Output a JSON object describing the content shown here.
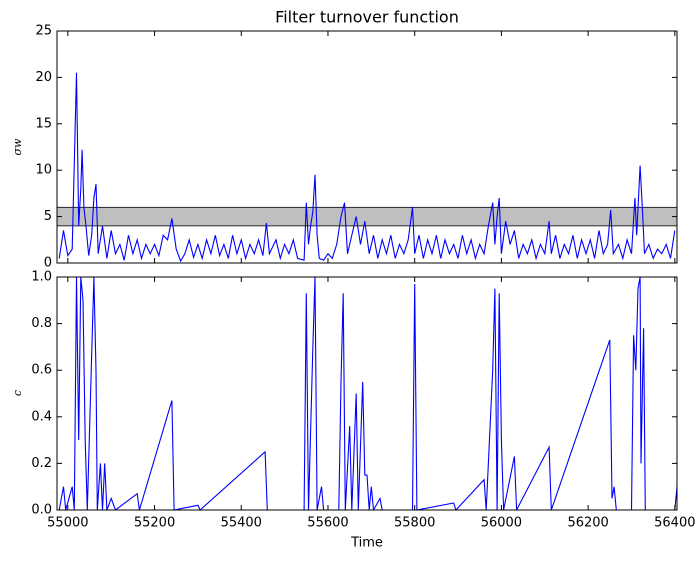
{
  "chart_data": [
    {
      "type": "line",
      "title": "Filter turnover function",
      "ylabel": "σw",
      "color": "#0000ff",
      "ylim": [
        0,
        25
      ],
      "yticks": [
        0,
        5,
        10,
        15,
        20,
        25
      ],
      "band": [
        4,
        6
      ],
      "band_color": "#bfbfbf",
      "x": [
        54980,
        54990,
        55000,
        55010,
        55020,
        55025,
        55030,
        55033,
        55037,
        55042,
        55048,
        55055,
        55060,
        55065,
        55070,
        55080,
        55090,
        55100,
        55110,
        55120,
        55130,
        55140,
        55150,
        55160,
        55170,
        55180,
        55190,
        55200,
        55210,
        55220,
        55230,
        55240,
        55250,
        55260,
        55270,
        55280,
        55290,
        55300,
        55310,
        55320,
        55330,
        55340,
        55350,
        55360,
        55370,
        55380,
        55390,
        55400,
        55410,
        55420,
        55430,
        55440,
        55450,
        55458,
        55465,
        55480,
        55490,
        55500,
        55510,
        55520,
        55530,
        55545,
        55550,
        55555,
        55560,
        55565,
        55570,
        55575,
        55580,
        55590,
        55600,
        55610,
        55620,
        55630,
        55638,
        55645,
        55655,
        55665,
        55675,
        55685,
        55695,
        55705,
        55715,
        55725,
        55735,
        55745,
        55755,
        55765,
        55775,
        55785,
        55795,
        55800,
        55810,
        55820,
        55830,
        55840,
        55850,
        55860,
        55870,
        55880,
        55890,
        55900,
        55910,
        55920,
        55930,
        55940,
        55950,
        55960,
        55970,
        55980,
        55985,
        55990,
        55995,
        56000,
        56010,
        56020,
        56030,
        56040,
        56050,
        56060,
        56070,
        56080,
        56090,
        56100,
        56110,
        56115,
        56125,
        56135,
        56145,
        56155,
        56165,
        56175,
        56185,
        56195,
        56205,
        56215,
        56225,
        56235,
        56245,
        56252,
        56258,
        56270,
        56280,
        56290,
        56300,
        56308,
        56312,
        56320,
        56325,
        56330,
        56340,
        56350,
        56360,
        56370,
        56380,
        56390,
        56400
      ],
      "values": [
        0.5,
        3.5,
        0.8,
        1.5,
        20.5,
        4,
        8,
        12.2,
        6,
        4,
        0.8,
        3,
        7,
        8.5,
        1,
        4,
        0.5,
        3.5,
        1,
        2,
        0.3,
        3,
        1,
        2.5,
        0.5,
        2,
        1,
        2,
        0.8,
        3,
        2.5,
        4.8,
        1.5,
        0.2,
        1,
        2.5,
        0.6,
        2,
        0.5,
        2.5,
        1,
        3,
        0.8,
        2,
        0.5,
        3,
        1,
        2.5,
        0.5,
        2,
        1,
        2.5,
        0.8,
        4.3,
        1,
        2.5,
        0.5,
        2,
        1,
        2.5,
        0.5,
        0.3,
        6.5,
        2,
        4,
        5.5,
        9.5,
        3,
        0.5,
        0.3,
        1,
        0.5,
        2,
        5,
        6.5,
        1,
        3,
        5,
        2,
        4.5,
        1,
        3,
        0.5,
        2.5,
        1,
        3,
        0.5,
        2,
        1,
        2.5,
        6,
        1,
        3,
        0.5,
        2.5,
        1,
        3,
        0.5,
        2.5,
        1,
        2,
        0.5,
        3,
        1,
        2.5,
        0.5,
        2,
        1,
        4,
        6.5,
        2,
        5,
        7,
        1,
        4.5,
        2,
        3.5,
        0.5,
        2,
        1,
        2.5,
        0.5,
        2,
        1,
        4.5,
        1,
        3,
        0.5,
        2,
        1,
        3,
        0.5,
        2.5,
        1,
        2.5,
        0.5,
        3.5,
        1,
        2,
        5.7,
        1,
        2,
        0.5,
        2.5,
        1,
        7,
        3,
        10.5,
        6,
        1,
        2,
        0.5,
        1.5,
        1,
        2,
        0.5,
        3.5
      ]
    },
    {
      "type": "line",
      "ylabel": "c",
      "xlabel": "Time",
      "color": "#0000ff",
      "xlim": [
        54975,
        56405
      ],
      "xticks": [
        55000,
        55200,
        55400,
        55600,
        55800,
        56000,
        56200,
        56400
      ],
      "ylim": [
        0,
        1
      ],
      "yticks": [
        {
          "value": 0,
          "label": "0.0"
        },
        0.2,
        0.4,
        0.6,
        0.8,
        {
          "value": 1,
          "label": "1.0"
        }
      ],
      "x": [
        54980,
        54990,
        54995,
        55010,
        55015,
        55020,
        55025,
        55030,
        55035,
        55040,
        55045,
        55055,
        55060,
        55065,
        55068,
        55075,
        55080,
        55085,
        55090,
        55100,
        55110,
        55160,
        55165,
        55240,
        55245,
        55300,
        55305,
        55455,
        55460,
        55545,
        55550,
        55555,
        55565,
        55570,
        55575,
        55585,
        55590,
        55625,
        55630,
        55635,
        55640,
        55650,
        55655,
        55665,
        55670,
        55680,
        55685,
        55690,
        55695,
        55700,
        55705,
        55720,
        55725,
        55795,
        55800,
        55805,
        55890,
        55895,
        55960,
        55965,
        55980,
        55985,
        55990,
        55995,
        56000,
        56005,
        56030,
        56035,
        56110,
        56115,
        56250,
        56255,
        56260,
        56265,
        56300,
        56305,
        56310,
        56315,
        56320,
        56322,
        56328,
        56332,
        56400,
        56405
      ],
      "values": [
        0,
        0.1,
        0,
        0.1,
        0,
        1,
        0.3,
        1,
        0.9,
        0.3,
        0,
        0.67,
        1,
        0.6,
        0,
        0.2,
        0,
        0.2,
        0,
        0.05,
        0,
        0.07,
        0,
        0.47,
        0,
        0.02,
        0,
        0.25,
        0,
        0,
        0.93,
        0,
        0.69,
        1,
        0,
        0.1,
        0,
        0,
        0.55,
        0.93,
        0,
        0.36,
        0,
        0.5,
        0,
        0.55,
        0.15,
        0.15,
        0,
        0.1,
        0,
        0.05,
        0,
        0,
        0.97,
        0,
        0.03,
        0,
        0.13,
        0,
        0.6,
        0.95,
        0,
        0.93,
        0.3,
        0,
        0.23,
        0,
        0.27,
        0,
        0.73,
        0.05,
        0.1,
        0,
        0,
        0.75,
        0.6,
        0.95,
        1,
        0.2,
        0.78,
        0,
        0,
        0.1
      ]
    }
  ]
}
